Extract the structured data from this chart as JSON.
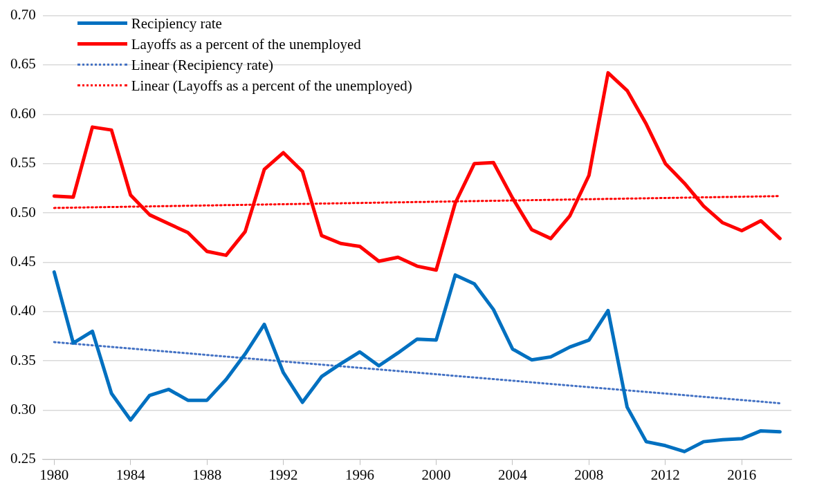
{
  "chart_data": {
    "type": "line",
    "xlim": [
      1979.4,
      2018.6
    ],
    "xticks": [
      1980,
      1984,
      1988,
      1992,
      1996,
      2000,
      2004,
      2008,
      2012,
      2016
    ],
    "ylim": [
      0.25,
      0.7
    ],
    "yticks": [
      0.25,
      {
        "value": 0.3,
        "label": "0.30"
      },
      0.35,
      {
        "value": 0.4,
        "label": "0.40"
      },
      0.45,
      {
        "value": 0.5,
        "label": "0.50"
      },
      0.55,
      {
        "value": 0.6,
        "label": "0.60"
      },
      0.65,
      {
        "value": 0.7,
        "label": "0.70"
      }
    ],
    "grid": "y",
    "legend": "top left",
    "marker": "none",
    "series": [
      {
        "name": "Recipiency rate",
        "color": "#0070c0",
        "x": [
          1980,
          1981,
          1982,
          1983,
          1984,
          1985,
          1986,
          1987,
          1988,
          1989,
          1990,
          1991,
          1992,
          1993,
          1994,
          1995,
          1996,
          1997,
          1998,
          1999,
          2000,
          2001,
          2002,
          2003,
          2004,
          2005,
          2006,
          2007,
          2008,
          2009,
          2010,
          2011,
          2012,
          2013,
          2014,
          2015,
          2016,
          2017,
          2018
        ],
        "values": [
          0.44,
          0.368,
          0.38,
          0.317,
          0.29,
          0.315,
          0.321,
          0.31,
          0.31,
          0.331,
          0.357,
          0.387,
          0.338,
          0.308,
          0.334,
          0.347,
          0.359,
          0.345,
          0.358,
          0.372,
          0.371,
          0.437,
          0.428,
          0.402,
          0.362,
          0.351,
          0.354,
          0.364,
          0.371,
          0.401,
          0.303,
          0.268,
          0.264,
          0.258,
          0.268,
          0.27,
          0.271,
          0.279,
          0.278
        ]
      },
      {
        "name": "Layoffs as a percent of the unemployed",
        "color": "#ff0000",
        "x": [
          1980,
          1981,
          1982,
          1983,
          1984,
          1985,
          1986,
          1987,
          1988,
          1989,
          1990,
          1991,
          1992,
          1993,
          1994,
          1995,
          1996,
          1997,
          1998,
          1999,
          2000,
          2001,
          2002,
          2003,
          2004,
          2005,
          2006,
          2007,
          2008,
          2009,
          2010,
          2011,
          2012,
          2013,
          2014,
          2015,
          2016,
          2017,
          2018
        ],
        "values": [
          0.517,
          0.516,
          0.587,
          0.584,
          0.518,
          0.498,
          0.489,
          0.48,
          0.461,
          0.457,
          0.481,
          0.544,
          0.561,
          0.542,
          0.477,
          0.469,
          0.466,
          0.451,
          0.455,
          0.446,
          0.442,
          0.51,
          0.55,
          0.551,
          0.515,
          0.483,
          0.474,
          0.497,
          0.538,
          0.642,
          0.624,
          0.59,
          0.55,
          0.53,
          0.507,
          0.49,
          0.482,
          0.492,
          0.474
        ]
      },
      {
        "name": "Linear (Recipiency rate)",
        "color": "#4472c4",
        "line_style": "dotted",
        "x": [
          1980,
          2018
        ],
        "values": [
          0.369,
          0.307
        ]
      },
      {
        "name": "Linear (Layoffs as a percent of the unemployed)",
        "color": "#ff0000",
        "line_style": "dotted",
        "x": [
          1980,
          2018
        ],
        "values": [
          0.505,
          0.517
        ]
      }
    ]
  }
}
